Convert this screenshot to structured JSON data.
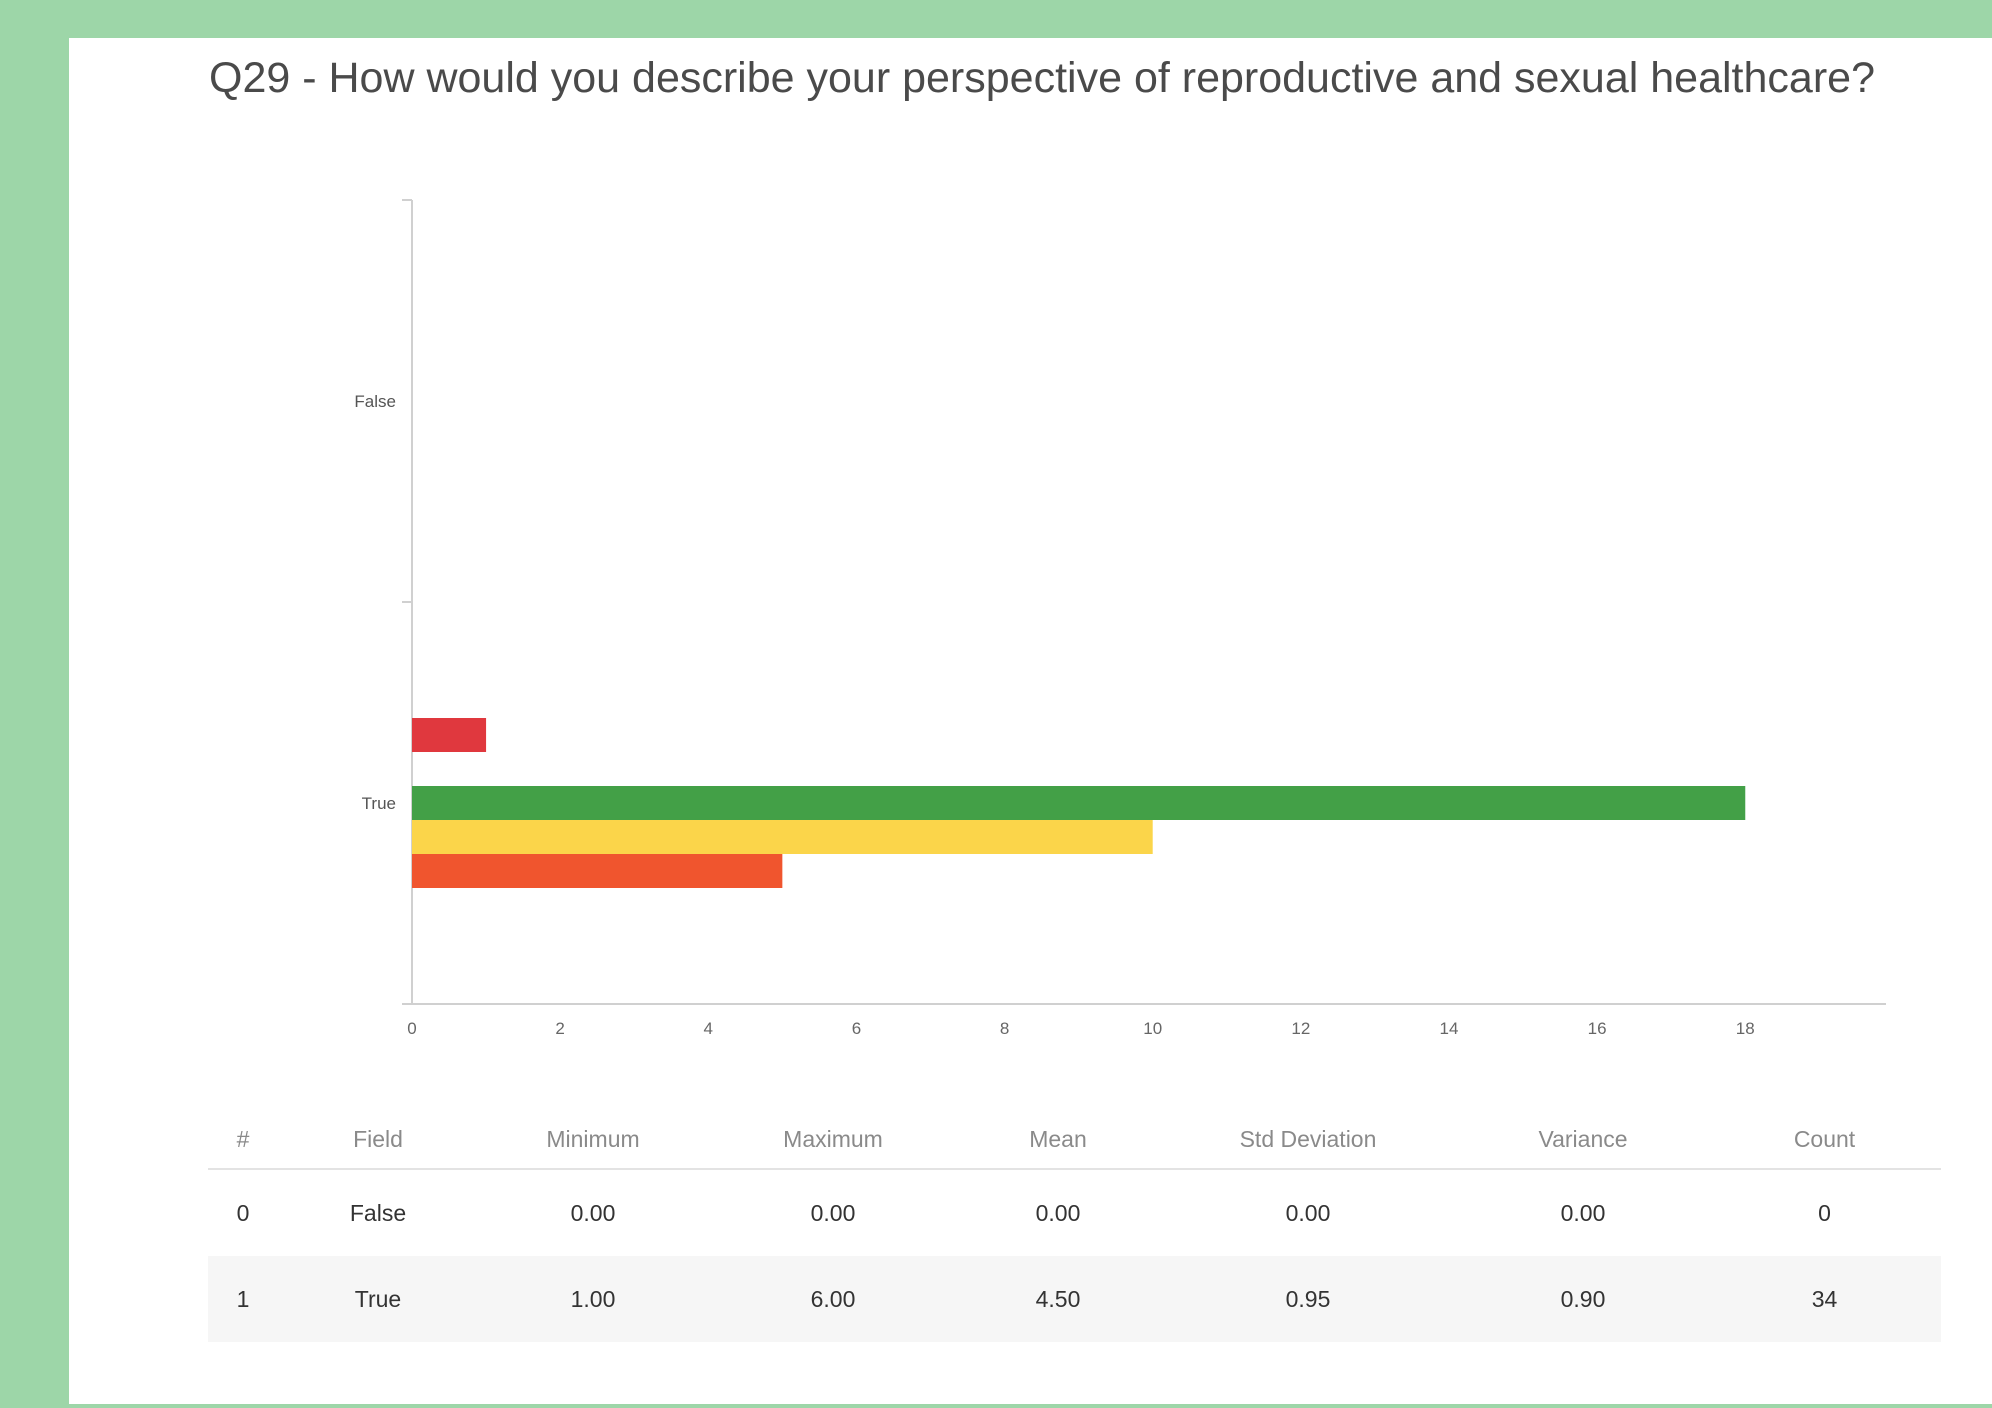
{
  "title": "Q29 - How would you describe your perspective of reproductive and sexual healthcare?",
  "chart_data": {
    "type": "bar",
    "orientation": "horizontal",
    "categories": [
      "False",
      "True"
    ],
    "series": [
      {
        "values": [
          0,
          1
        ],
        "color": "#e0383e"
      },
      {
        "values": [
          0,
          0
        ],
        "color": "#f8a23a"
      },
      {
        "values": [
          0,
          18
        ],
        "color": "#43a047"
      },
      {
        "values": [
          0,
          10
        ],
        "color": "#fbd54a"
      },
      {
        "values": [
          0,
          5
        ],
        "color": "#f0552e"
      }
    ],
    "x_ticks": [
      0,
      2,
      4,
      6,
      8,
      10,
      12,
      14,
      16,
      18
    ],
    "xlim": [
      0,
      19.9
    ],
    "grid": false,
    "legend": "none"
  },
  "table": {
    "columns": [
      "#",
      "Field",
      "Minimum",
      "Maximum",
      "Mean",
      "Std Deviation",
      "Variance",
      "Count"
    ],
    "rows": [
      [
        "0",
        "False",
        "0.00",
        "0.00",
        "0.00",
        "0.00",
        "0.00",
        "0"
      ],
      [
        "1",
        "True",
        "1.00",
        "6.00",
        "4.50",
        "0.95",
        "0.90",
        "34"
      ]
    ]
  }
}
